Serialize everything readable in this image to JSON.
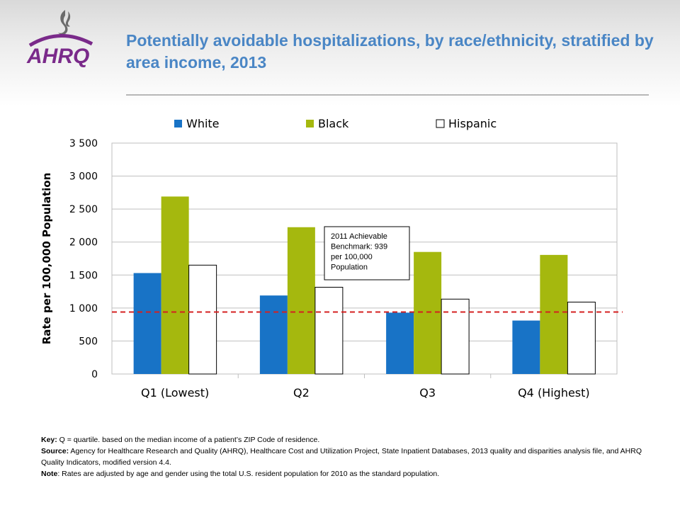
{
  "header": {
    "title": "Potentially avoidable hospitalizations, by race/ethnicity, stratified by area income, 2013",
    "logo_text": "AHRQ"
  },
  "chart_data": {
    "type": "bar",
    "title": "",
    "xlabel": "",
    "ylabel": "Rate per 100,000 Population",
    "categories": [
      "Q1 (Lowest)",
      "Q2",
      "Q3",
      "Q4 (Highest)"
    ],
    "series": [
      {
        "name": "White",
        "values": [
          1530,
          1190,
          930,
          810
        ],
        "color": "#1873c6"
      },
      {
        "name": "Black",
        "values": [
          2690,
          2225,
          1850,
          1805
        ],
        "color": "#a5b80e"
      },
      {
        "name": "Hispanic",
        "values": [
          1650,
          1315,
          1135,
          1090
        ],
        "color": "#ffffff"
      }
    ],
    "ylim": [
      0,
      3500
    ],
    "yticks": [
      0,
      500,
      1000,
      1500,
      2000,
      2500,
      3000,
      3500
    ],
    "ytick_labels": [
      "0",
      "500",
      "1 000",
      "1 500",
      "2 000",
      "2 500",
      "3 000",
      "3 500"
    ],
    "grid": true,
    "legend_position": "top",
    "benchmark": {
      "value": 939,
      "label": "2011 Achievable Benchmark: 939 per 100,000 Population",
      "label_lines": [
        "2011 Achievable",
        "Benchmark: 939",
        "per 100,000",
        "Population"
      ],
      "color": "#d42020",
      "style": "dashed"
    }
  },
  "notes": {
    "key_label": "Key:",
    "key_text": " Q = quartile. based on the median income of a patient’s ZIP Code of residence.",
    "source_label": "Source:",
    "source_text": " Agency for Healthcare Research and Quality (AHRQ), Healthcare Cost and Utilization Project, State Inpatient Databases, 2013 quality and disparities analysis file, and AHRQ Quality Indicators, modified version 4.4.",
    "note_label": "Note",
    "note_text": ": Rates are adjusted by age and gender using the total U.S. resident population for 2010 as the standard population."
  }
}
